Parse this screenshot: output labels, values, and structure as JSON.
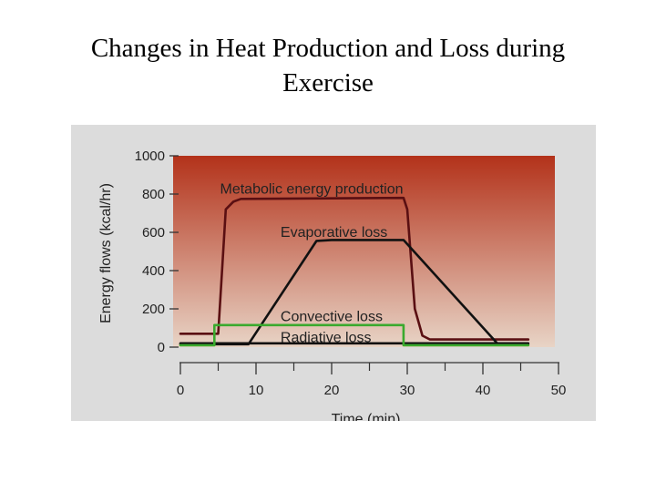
{
  "slide": {
    "title_line1": "Changes in Heat Production and Loss during",
    "title_line2": "Exercise"
  },
  "chart_data": {
    "type": "line",
    "title": "Changes in Heat Production and Loss during Exercise",
    "xlabel": "Time (min)",
    "ylabel": "Energy flows (kcal/hr)",
    "xlim": [
      0,
      50
    ],
    "ylim": [
      0,
      1000
    ],
    "x_ticks": [
      0,
      10,
      20,
      30,
      40,
      50
    ],
    "x_minor_ticks": [
      5,
      15,
      25,
      35,
      45
    ],
    "y_ticks": [
      0,
      200,
      400,
      600,
      800,
      1000
    ],
    "grid": false,
    "background_gradient": [
      "#b3321a",
      "#e8d4c6"
    ],
    "series": [
      {
        "name": "Metabolic energy production",
        "color": "#5a0f12",
        "points": [
          [
            0,
            70
          ],
          [
            5,
            70
          ],
          [
            6,
            720
          ],
          [
            7,
            760
          ],
          [
            8,
            775
          ],
          [
            29.5,
            780
          ],
          [
            30,
            720
          ],
          [
            31,
            200
          ],
          [
            32,
            60
          ],
          [
            33,
            40
          ],
          [
            46,
            40
          ]
        ]
      },
      {
        "name": "Evaporative loss",
        "color": "#111111",
        "points": [
          [
            0,
            15
          ],
          [
            9,
            15
          ],
          [
            18,
            555
          ],
          [
            20,
            560
          ],
          [
            29.5,
            560
          ],
          [
            42,
            15
          ],
          [
            46,
            15
          ]
        ]
      },
      {
        "name": "Convective loss",
        "color": "#111111",
        "points": [
          [
            0,
            20
          ],
          [
            46,
            20
          ]
        ]
      },
      {
        "name": "Radiative loss",
        "color": "#3aaa2e",
        "points": [
          [
            0,
            10
          ],
          [
            4.5,
            10
          ],
          [
            4.5,
            115
          ],
          [
            29.5,
            115
          ],
          [
            29.5,
            10
          ],
          [
            46,
            10
          ]
        ]
      }
    ],
    "annotations": [
      {
        "text": "Metabolic energy production",
        "x": 5,
        "y": 830
      },
      {
        "text": "Evaporative loss",
        "x": 13,
        "y": 605
      },
      {
        "text": "Convective loss",
        "x": 13,
        "y": 165
      },
      {
        "text": "Radiative loss",
        "x": 13,
        "y": 55
      }
    ]
  }
}
